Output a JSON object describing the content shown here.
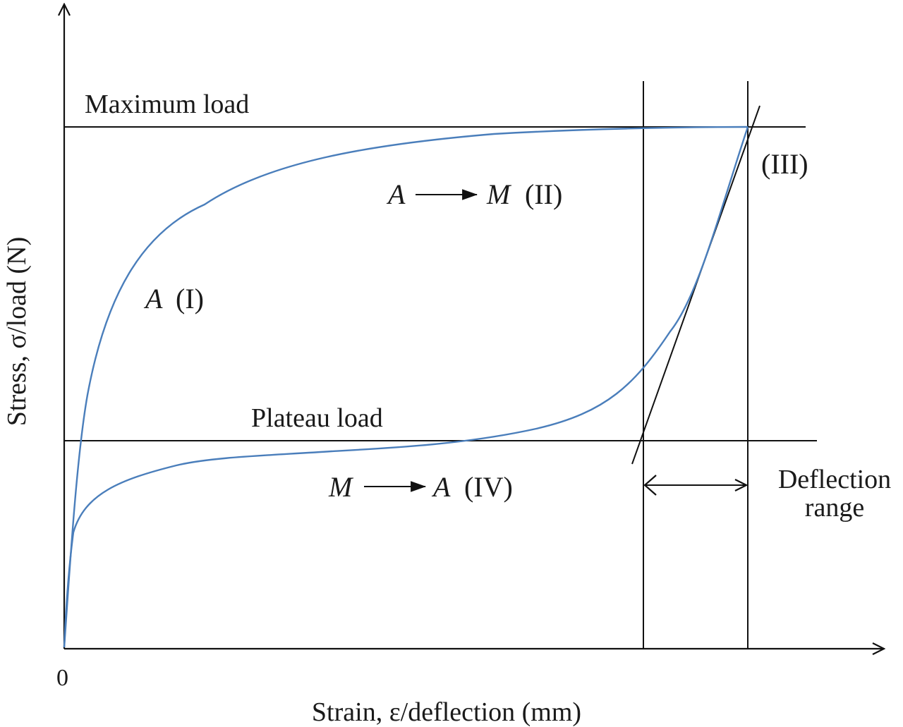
{
  "labels": {
    "max_load": "Maximum load",
    "plateau_load": "Plateau load",
    "origin": "0",
    "x_axis": "Strain, ε/deflection (mm)",
    "y_axis": "Stress, σ/load (N)",
    "stage_1_var": "A",
    "stage_1_num": "(I)",
    "stage_2_from": "A",
    "stage_2_to": "M",
    "stage_2_num": "(II)",
    "stage_3_num": "(III)",
    "stage_4_from": "M",
    "stage_4_to": "A",
    "stage_4_num": "(IV)",
    "deflection_line1": "Deflection",
    "deflection_line2": "range"
  },
  "colors": {
    "curve": "#4a7ebb",
    "lines": "#111111"
  }
}
